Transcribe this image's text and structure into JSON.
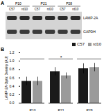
{
  "blot": {
    "panel": "A",
    "groups": [
      "P10",
      "P21",
      "P28"
    ],
    "lanes": [
      "C57",
      "rd10",
      "C57",
      "rd10",
      "C57",
      "rd10"
    ],
    "bands": [
      "LAMP-2A",
      "GAPDH"
    ]
  },
  "chart_data": {
    "panel": "B",
    "type": "bar",
    "y_label": "LAMP-2A Optic Density (AU)",
    "categories": [
      "P10",
      "P21",
      "P28"
    ],
    "series": [
      {
        "name": "C57",
        "color": "#1a1a1a",
        "values": [
          0.52,
          0.75,
          0.82
        ],
        "errors": [
          0.1,
          0.1,
          0.12
        ]
      },
      {
        "name": "rd10",
        "color": "#9a9a9a",
        "values": [
          0.52,
          0.65,
          0.85
        ],
        "errors": [
          0.1,
          0.07,
          0.1
        ]
      }
    ],
    "ylim": [
      0,
      1.2
    ],
    "yticks": [
      0,
      0.2,
      0.4,
      0.6,
      0.8,
      1,
      1.2
    ],
    "annotations": [
      {
        "text": "*",
        "from": "P10",
        "to": "P28",
        "y": 1.05
      }
    ]
  }
}
